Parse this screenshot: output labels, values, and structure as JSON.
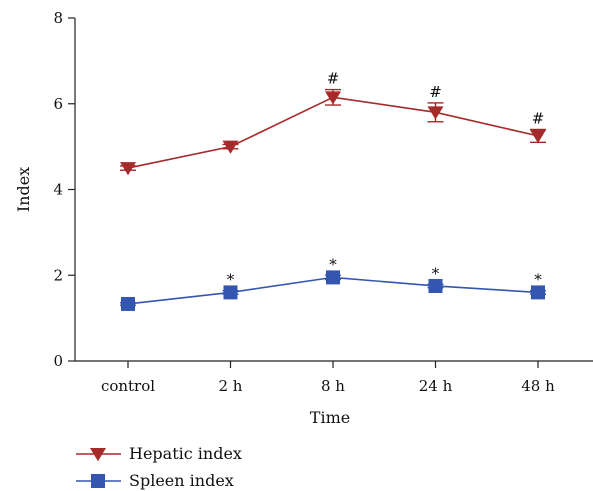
{
  "chart_data": {
    "type": "line",
    "xlabel": "Time",
    "ylabel": "Index",
    "ylim": [
      0,
      8
    ],
    "yticks": [
      0,
      2,
      4,
      6,
      8
    ],
    "categories": [
      "control",
      "2 h",
      "8 h",
      "24 h",
      "48 h"
    ],
    "grid": false,
    "legend_position": "bottom-left",
    "series": [
      {
        "name": "Hepatic index",
        "color": "#a52a2a",
        "marker": "triangle-down",
        "values": [
          4.5,
          5.0,
          6.15,
          5.8,
          5.25
        ],
        "errors": [
          0.05,
          0.05,
          0.18,
          0.22,
          0.15
        ],
        "annotations": [
          "",
          "",
          "#",
          "#",
          "#"
        ]
      },
      {
        "name": "Spleen index",
        "color": "#3556b0",
        "marker": "square",
        "values": [
          1.33,
          1.6,
          1.95,
          1.75,
          1.6
        ],
        "errors": [
          0.03,
          0.04,
          0.05,
          0.04,
          0.04
        ],
        "annotations": [
          "",
          "*",
          "*",
          "*",
          "*"
        ]
      }
    ]
  }
}
